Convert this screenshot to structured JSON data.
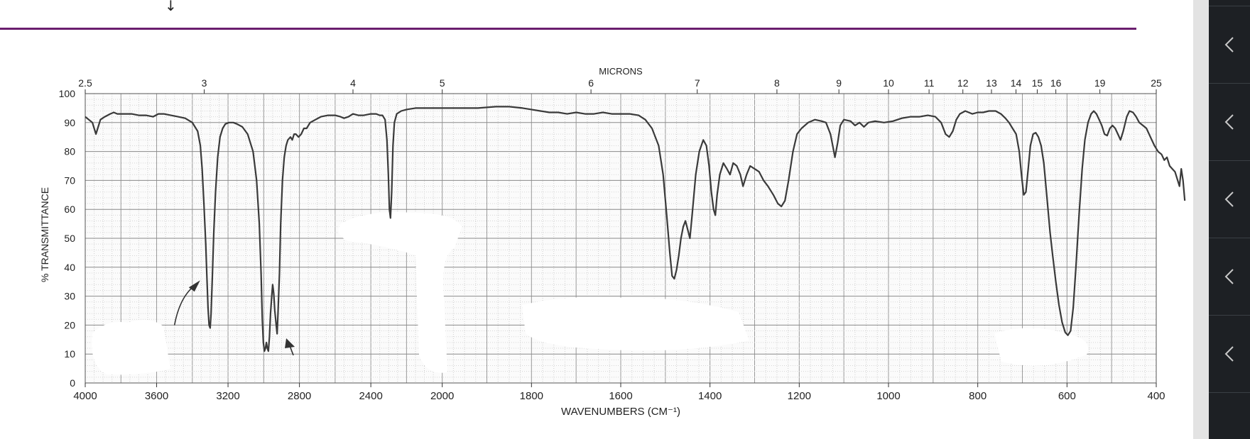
{
  "page": {
    "accent_color": "#6a1e6e",
    "cursor_glyph": "↓"
  },
  "sidebar": {
    "background": "#1d2024",
    "gutter": "#e3e3e3",
    "buttons": [
      {
        "icon": "chevron-left-icon"
      },
      {
        "icon": "chevron-left-icon"
      },
      {
        "icon": "chevron-left-icon"
      },
      {
        "icon": "chevron-left-icon"
      },
      {
        "icon": "chevron-left-icon"
      },
      {
        "icon": "chevron-left-icon"
      }
    ]
  },
  "chart_data": {
    "type": "line",
    "title": "",
    "top_axis_label": "MICRONS",
    "xlabel": "WAVENUMBERS (CM⁻¹)",
    "ylabel": "% TRANSMITTANCE",
    "x_ticks": [
      "4000",
      "3600",
      "3200",
      "2800",
      "2400",
      "2000",
      "1800",
      "1600",
      "1400",
      "1200",
      "1000",
      "800",
      "600",
      "400"
    ],
    "micron_ticks": [
      "2.5",
      "3",
      "4",
      "5",
      "6",
      "7",
      "8",
      "9",
      "10",
      "11",
      "12",
      "13",
      "14",
      "15",
      "16",
      "19",
      "25"
    ],
    "y_ticks": [
      "0",
      "10",
      "20",
      "30",
      "40",
      "50",
      "60",
      "70",
      "80",
      "90",
      "100"
    ],
    "ylim": [
      0,
      100
    ],
    "grid": true,
    "annotations": [
      {
        "type": "arrow",
        "points_to": "~3300 cm-1 absorption"
      },
      {
        "type": "arrow",
        "points_to": "~2850 cm-1 absorption"
      }
    ],
    "series": [
      {
        "name": "IR spectrum",
        "points": [
          [
            4000,
            92
          ],
          [
            3980,
            91
          ],
          [
            3960,
            90
          ],
          [
            3950,
            88
          ],
          [
            3940,
            86
          ],
          [
            3930,
            88
          ],
          [
            3915,
            91
          ],
          [
            3890,
            92
          ],
          [
            3860,
            93
          ],
          [
            3840,
            93.5
          ],
          [
            3820,
            93
          ],
          [
            3780,
            93
          ],
          [
            3740,
            93
          ],
          [
            3700,
            92.5
          ],
          [
            3660,
            92.5
          ],
          [
            3620,
            92
          ],
          [
            3590,
            93
          ],
          [
            3560,
            93
          ],
          [
            3520,
            92.5
          ],
          [
            3480,
            92
          ],
          [
            3440,
            91.5
          ],
          [
            3400,
            90
          ],
          [
            3370,
            87
          ],
          [
            3355,
            82
          ],
          [
            3345,
            74
          ],
          [
            3335,
            62
          ],
          [
            3325,
            48
          ],
          [
            3318,
            36
          ],
          [
            3312,
            26
          ],
          [
            3306,
            20
          ],
          [
            3300,
            19
          ],
          [
            3295,
            24
          ],
          [
            3288,
            36
          ],
          [
            3280,
            52
          ],
          [
            3270,
            66
          ],
          [
            3258,
            78
          ],
          [
            3245,
            85
          ],
          [
            3230,
            88
          ],
          [
            3215,
            89.5
          ],
          [
            3195,
            90
          ],
          [
            3170,
            90
          ],
          [
            3150,
            89.5
          ],
          [
            3120,
            88.5
          ],
          [
            3090,
            86
          ],
          [
            3060,
            80
          ],
          [
            3040,
            70
          ],
          [
            3025,
            55
          ],
          [
            3015,
            38
          ],
          [
            3008,
            22
          ],
          [
            3002,
            14
          ],
          [
            2996,
            11
          ],
          [
            2990,
            12
          ],
          [
            2985,
            14
          ],
          [
            2980,
            12
          ],
          [
            2974,
            11
          ],
          [
            2968,
            16
          ],
          [
            2962,
            24
          ],
          [
            2955,
            30
          ],
          [
            2950,
            34
          ],
          [
            2944,
            31
          ],
          [
            2938,
            25
          ],
          [
            2930,
            20
          ],
          [
            2925,
            17
          ],
          [
            2920,
            24
          ],
          [
            2912,
            38
          ],
          [
            2905,
            55
          ],
          [
            2895,
            70
          ],
          [
            2885,
            78
          ],
          [
            2875,
            82
          ],
          [
            2865,
            84
          ],
          [
            2850,
            85
          ],
          [
            2840,
            84
          ],
          [
            2830,
            86
          ],
          [
            2820,
            86
          ],
          [
            2805,
            85
          ],
          [
            2790,
            86
          ],
          [
            2775,
            88
          ],
          [
            2760,
            88
          ],
          [
            2740,
            90
          ],
          [
            2710,
            91
          ],
          [
            2680,
            92
          ],
          [
            2640,
            92.5
          ],
          [
            2600,
            92.5
          ],
          [
            2570,
            92
          ],
          [
            2550,
            91.5
          ],
          [
            2525,
            92
          ],
          [
            2500,
            93
          ],
          [
            2470,
            92.5
          ],
          [
            2440,
            92.5
          ],
          [
            2400,
            93
          ],
          [
            2370,
            93
          ],
          [
            2350,
            92.5
          ],
          [
            2335,
            92.5
          ],
          [
            2320,
            91
          ],
          [
            2310,
            84
          ],
          [
            2302,
            72
          ],
          [
            2296,
            60
          ],
          [
            2290,
            57
          ],
          [
            2283,
            66
          ],
          [
            2276,
            82
          ],
          [
            2268,
            90
          ],
          [
            2255,
            93
          ],
          [
            2230,
            94
          ],
          [
            2200,
            94.5
          ],
          [
            2150,
            95
          ],
          [
            2100,
            95
          ],
          [
            2050,
            95
          ],
          [
            2000,
            95
          ],
          [
            1960,
            95
          ],
          [
            1920,
            95
          ],
          [
            1880,
            95.5
          ],
          [
            1850,
            95.5
          ],
          [
            1820,
            95
          ],
          [
            1800,
            94.5
          ],
          [
            1780,
            94
          ],
          [
            1760,
            93.5
          ],
          [
            1740,
            93.5
          ],
          [
            1720,
            93
          ],
          [
            1700,
            93.5
          ],
          [
            1680,
            93
          ],
          [
            1660,
            93
          ],
          [
            1640,
            93.5
          ],
          [
            1620,
            93
          ],
          [
            1600,
            93
          ],
          [
            1580,
            93
          ],
          [
            1560,
            92.5
          ],
          [
            1545,
            91
          ],
          [
            1530,
            88
          ],
          [
            1515,
            82
          ],
          [
            1505,
            72
          ],
          [
            1497,
            58
          ],
          [
            1490,
            45
          ],
          [
            1485,
            37
          ],
          [
            1480,
            36
          ],
          [
            1475,
            39
          ],
          [
            1470,
            44
          ],
          [
            1465,
            50
          ],
          [
            1460,
            54
          ],
          [
            1455,
            56
          ],
          [
            1450,
            53
          ],
          [
            1445,
            50
          ],
          [
            1440,
            58
          ],
          [
            1432,
            72
          ],
          [
            1424,
            80
          ],
          [
            1415,
            84
          ],
          [
            1408,
            82
          ],
          [
            1402,
            75
          ],
          [
            1397,
            66
          ],
          [
            1392,
            60
          ],
          [
            1388,
            58
          ],
          [
            1384,
            65
          ],
          [
            1378,
            72
          ],
          [
            1370,
            76
          ],
          [
            1362,
            74
          ],
          [
            1355,
            72
          ],
          [
            1348,
            76
          ],
          [
            1340,
            75
          ],
          [
            1332,
            72
          ],
          [
            1326,
            68
          ],
          [
            1318,
            72
          ],
          [
            1310,
            75
          ],
          [
            1300,
            74
          ],
          [
            1290,
            73
          ],
          [
            1280,
            70
          ],
          [
            1270,
            68
          ],
          [
            1258,
            65
          ],
          [
            1248,
            62
          ],
          [
            1240,
            61
          ],
          [
            1232,
            63
          ],
          [
            1224,
            70
          ],
          [
            1214,
            80
          ],
          [
            1205,
            86
          ],
          [
            1195,
            88
          ],
          [
            1180,
            90
          ],
          [
            1165,
            91
          ],
          [
            1150,
            90.5
          ],
          [
            1140,
            90
          ],
          [
            1130,
            86
          ],
          [
            1125,
            82
          ],
          [
            1120,
            78
          ],
          [
            1114,
            83
          ],
          [
            1108,
            89
          ],
          [
            1100,
            91
          ],
          [
            1085,
            90.5
          ],
          [
            1075,
            89
          ],
          [
            1065,
            90
          ],
          [
            1055,
            88.5
          ],
          [
            1045,
            90
          ],
          [
            1030,
            90.5
          ],
          [
            1010,
            90
          ],
          [
            990,
            90.5
          ],
          [
            970,
            91.5
          ],
          [
            950,
            92
          ],
          [
            930,
            92
          ],
          [
            912,
            92.5
          ],
          [
            895,
            92
          ],
          [
            882,
            90
          ],
          [
            872,
            86
          ],
          [
            864,
            85
          ],
          [
            856,
            87
          ],
          [
            848,
            91
          ],
          [
            840,
            93
          ],
          [
            828,
            94
          ],
          [
            812,
            93
          ],
          [
            800,
            93.5
          ],
          [
            788,
            93.5
          ],
          [
            775,
            94
          ],
          [
            760,
            94
          ],
          [
            748,
            93
          ],
          [
            738,
            91.5
          ],
          [
            730,
            90
          ],
          [
            722,
            88
          ],
          [
            714,
            86
          ],
          [
            707,
            80
          ],
          [
            702,
            72
          ],
          [
            697,
            65
          ],
          [
            692,
            66
          ],
          [
            687,
            74
          ],
          [
            682,
            82
          ],
          [
            676,
            86
          ],
          [
            670,
            86.5
          ],
          [
            664,
            85
          ],
          [
            658,
            82
          ],
          [
            652,
            76
          ],
          [
            646,
            66
          ],
          [
            638,
            52
          ],
          [
            632,
            44
          ],
          [
            625,
            35
          ],
          [
            618,
            27
          ],
          [
            611,
            21
          ],
          [
            604,
            17.5
          ],
          [
            598,
            16.5
          ],
          [
            592,
            18
          ],
          [
            586,
            26
          ],
          [
            580,
            40
          ],
          [
            573,
            58
          ],
          [
            566,
            74
          ],
          [
            560,
            84
          ],
          [
            553,
            90
          ],
          [
            546,
            93
          ],
          [
            540,
            94
          ],
          [
            534,
            93
          ],
          [
            528,
            91
          ],
          [
            522,
            89
          ],
          [
            516,
            86
          ],
          [
            510,
            85.5
          ],
          [
            504,
            88
          ],
          [
            498,
            89
          ],
          [
            492,
            88
          ],
          [
            486,
            86
          ],
          [
            480,
            84
          ],
          [
            474,
            87
          ],
          [
            466,
            92
          ],
          [
            460,
            94
          ],
          [
            452,
            93.5
          ],
          [
            445,
            92
          ],
          [
            438,
            90
          ],
          [
            430,
            89
          ],
          [
            422,
            88
          ],
          [
            416,
            86
          ],
          [
            410,
            84
          ],
          [
            404,
            82
          ],
          [
            396,
            80
          ],
          [
            388,
            79
          ],
          [
            382,
            77
          ],
          [
            376,
            78
          ],
          [
            370,
            75
          ],
          [
            364,
            74
          ],
          [
            358,
            73
          ],
          [
            352,
            70
          ],
          [
            348,
            68
          ],
          [
            344,
            74
          ],
          [
            340,
            70
          ],
          [
            336,
            63
          ]
        ]
      }
    ]
  }
}
